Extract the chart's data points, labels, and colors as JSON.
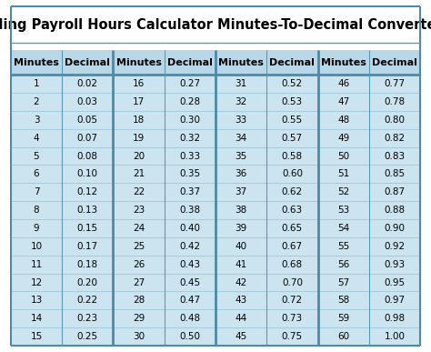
{
  "title": "Sling Payroll Hours Calculator Minutes-To-Decimal Converter",
  "title_fontsize": 10.5,
  "header_bg": "#b8d8ea",
  "row_bg": "#cce4f0",
  "white_bg": "#ffffff",
  "border_color": "#5b9ab5",
  "thick_border_color": "#4a8aaa",
  "header_text_color": "#000000",
  "cell_text_color": "#000000",
  "columns": [
    "Minutes",
    "Decimal",
    "Minutes",
    "Decimal",
    "Minutes",
    "Decimal",
    "Minutes",
    "Decimal"
  ],
  "data": [
    [
      "1",
      "0.02",
      "16",
      "0.27",
      "31",
      "0.52",
      "46",
      "0.77"
    ],
    [
      "2",
      "0.03",
      "17",
      "0.28",
      "32",
      "0.53",
      "47",
      "0.78"
    ],
    [
      "3",
      "0.05",
      "18",
      "0.30",
      "33",
      "0.55",
      "48",
      "0.80"
    ],
    [
      "4",
      "0.07",
      "19",
      "0.32",
      "34",
      "0.57",
      "49",
      "0.82"
    ],
    [
      "5",
      "0.08",
      "20",
      "0.33",
      "35",
      "0.58",
      "50",
      "0.83"
    ],
    [
      "6",
      "0.10",
      "21",
      "0.35",
      "36",
      "0.60",
      "51",
      "0.85"
    ],
    [
      "7",
      "0.12",
      "22",
      "0.37",
      "37",
      "0.62",
      "52",
      "0.87"
    ],
    [
      "8",
      "0.13",
      "23",
      "0.38",
      "38",
      "0.63",
      "53",
      "0.88"
    ],
    [
      "9",
      "0.15",
      "24",
      "0.40",
      "39",
      "0.65",
      "54",
      "0.90"
    ],
    [
      "10",
      "0.17",
      "25",
      "0.42",
      "40",
      "0.67",
      "55",
      "0.92"
    ],
    [
      "11",
      "0.18",
      "26",
      "0.43",
      "41",
      "0.68",
      "56",
      "0.93"
    ],
    [
      "12",
      "0.20",
      "27",
      "0.45",
      "42",
      "0.70",
      "57",
      "0.95"
    ],
    [
      "13",
      "0.22",
      "28",
      "0.47",
      "43",
      "0.72",
      "58",
      "0.97"
    ],
    [
      "14",
      "0.23",
      "29",
      "0.48",
      "44",
      "0.73",
      "59",
      "0.98"
    ],
    [
      "15",
      "0.25",
      "30",
      "0.50",
      "45",
      "0.75",
      "60",
      "1.00"
    ]
  ],
  "fig_bg": "#ffffff"
}
